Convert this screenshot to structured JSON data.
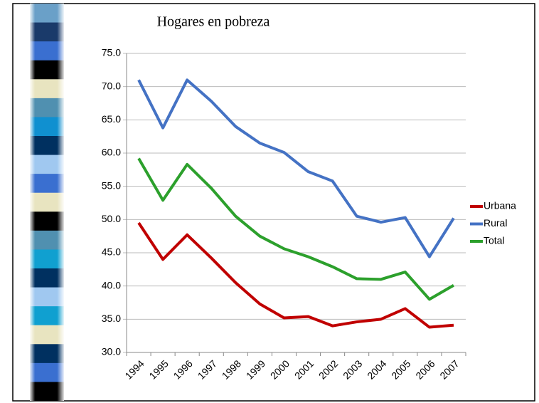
{
  "chart_data": {
    "type": "line",
    "title": "Hogares en pobreza",
    "categories": [
      "1994",
      "1995",
      "1996",
      "1997",
      "1998",
      "1999",
      "2000",
      "2001",
      "2002",
      "2003",
      "2004",
      "2005",
      "2006",
      "2007"
    ],
    "series": [
      {
        "name": "Urbana",
        "color": "#c00000",
        "values": [
          49.5,
          44.0,
          47.7,
          44.2,
          40.5,
          37.3,
          35.2,
          35.4,
          34.0,
          34.6,
          35.0,
          36.6,
          33.8,
          34.1
        ]
      },
      {
        "name": "Rural",
        "color": "#4472c4",
        "values": [
          71.0,
          63.8,
          71.0,
          67.8,
          64.0,
          61.5,
          60.1,
          57.2,
          55.8,
          50.5,
          49.6,
          50.3,
          44.4,
          50.2
        ]
      },
      {
        "name": "Total",
        "color": "#2ca02c",
        "values": [
          59.2,
          52.9,
          58.3,
          54.7,
          50.5,
          47.5,
          45.6,
          44.4,
          42.9,
          41.1,
          41.0,
          42.1,
          38.0,
          40.1
        ]
      }
    ],
    "ylim": [
      30,
      75
    ],
    "yticks": [
      {
        "value": 30,
        "label": "30.0"
      },
      {
        "value": 35,
        "label": "35.0"
      },
      {
        "value": 40,
        "label": "40.0"
      },
      {
        "value": 45,
        "label": "45.0"
      },
      {
        "value": 50,
        "label": "50.0"
      },
      {
        "value": 55,
        "label": "55.0"
      },
      {
        "value": 60,
        "label": "60.0"
      },
      {
        "value": 65,
        "label": "65.0"
      },
      {
        "value": 70,
        "label": "70.0"
      },
      {
        "value": 75,
        "label": "75.0"
      }
    ],
    "grid": true,
    "legend": "right"
  }
}
